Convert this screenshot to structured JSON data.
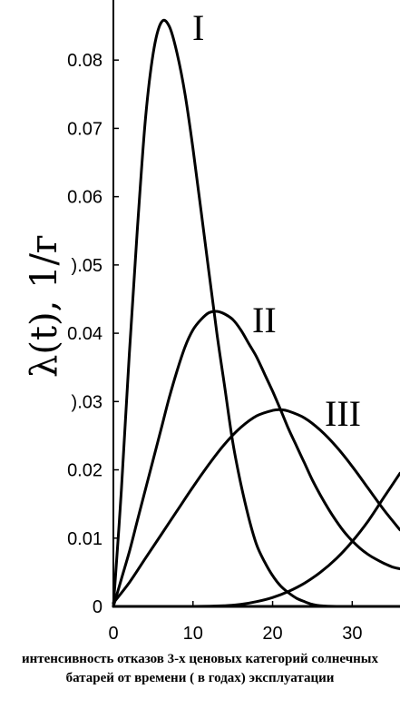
{
  "caption": "интенсивность отказов 3-х ценовых категорий солнечных батарей от времени ( в годах) эксплуатации",
  "chart_data": {
    "type": "line",
    "ylabel": "λ(t), 1/г",
    "xlim": [
      0,
      36
    ],
    "ylim": [
      0,
      0.088
    ],
    "x_ticks": [
      0,
      10,
      20,
      30
    ],
    "x_tick_labels": [
      "0",
      "10",
      "20",
      "30"
    ],
    "y_ticks": [
      0,
      0.01,
      0.02,
      0.03,
      0.04,
      0.05,
      0.06,
      0.07,
      0.08
    ],
    "y_tick_labels": [
      "0",
      "0.01",
      "0.02",
      ").03",
      "0.04",
      ").05",
      "0.06",
      "0.07",
      "0.08"
    ],
    "grid": false,
    "series": [
      {
        "name": "I",
        "color": "#000000",
        "x": [
          0,
          1,
          2,
          3,
          4,
          5,
          6,
          7,
          8,
          9,
          10,
          11,
          12,
          13,
          14,
          15,
          16,
          17,
          18,
          19,
          20,
          21,
          22,
          23,
          24,
          25,
          26,
          28,
          30,
          36
        ],
        "y": [
          0,
          0.017,
          0.037,
          0.055,
          0.071,
          0.081,
          0.0855,
          0.085,
          0.081,
          0.075,
          0.067,
          0.058,
          0.049,
          0.04,
          0.032,
          0.024,
          0.018,
          0.013,
          0.009,
          0.0065,
          0.0045,
          0.003,
          0.002,
          0.0012,
          0.0007,
          0.0003,
          0.0001,
          0,
          0,
          0
        ]
      },
      {
        "name": "II",
        "color": "#000000",
        "x": [
          0,
          1,
          2,
          3,
          4,
          5,
          6,
          7,
          8,
          9,
          10,
          11,
          12,
          13,
          14,
          15,
          16,
          17,
          18,
          19,
          20,
          21,
          22,
          23,
          24,
          25,
          26,
          27,
          28,
          29,
          30,
          31,
          32,
          33,
          34,
          35,
          36
        ],
        "y": [
          0,
          0.004,
          0.008,
          0.0125,
          0.017,
          0.0215,
          0.026,
          0.0305,
          0.0345,
          0.038,
          0.0405,
          0.042,
          0.043,
          0.0432,
          0.0428,
          0.042,
          0.0405,
          0.0385,
          0.0365,
          0.034,
          0.0315,
          0.0288,
          0.026,
          0.0235,
          0.021,
          0.0185,
          0.0163,
          0.0143,
          0.0125,
          0.0109,
          0.0096,
          0.0085,
          0.0076,
          0.0069,
          0.0063,
          0.0058,
          0.0055
        ]
      },
      {
        "name": "III",
        "color": "#000000",
        "x": [
          0,
          2,
          4,
          6,
          8,
          10,
          12,
          14,
          16,
          18,
          20,
          21,
          22,
          24,
          26,
          28,
          30,
          32,
          34,
          36
        ],
        "y": [
          0.0005,
          0.0035,
          0.007,
          0.0105,
          0.014,
          0.0175,
          0.0208,
          0.0238,
          0.0262,
          0.0279,
          0.0287,
          0.0288,
          0.0286,
          0.0276,
          0.0258,
          0.0234,
          0.0205,
          0.0173,
          0.0141,
          0.0112
        ]
      },
      {
        "name": "",
        "color": "#000000",
        "x": [
          0,
          10,
          14,
          16,
          18,
          20,
          22,
          24,
          26,
          28,
          30,
          32,
          34,
          36
        ],
        "y": [
          0,
          0,
          0.0001,
          0.0003,
          0.0007,
          0.0013,
          0.0022,
          0.0034,
          0.005,
          0.007,
          0.0095,
          0.0125,
          0.016,
          0.0195
        ]
      }
    ]
  }
}
